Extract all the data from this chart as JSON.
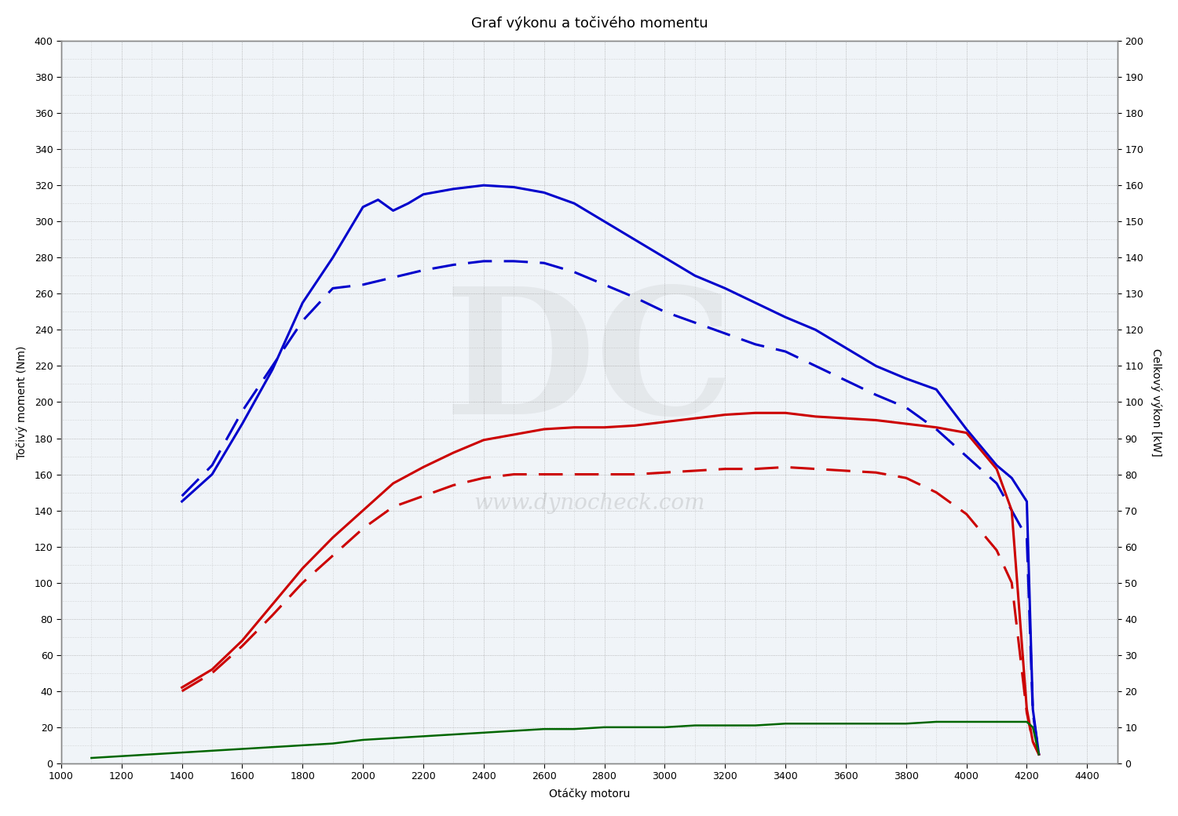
{
  "title": "Graf výkonu a točivého momentu",
  "xlabel": "Otáčky motoru",
  "ylabel_left": "Točivý moment (Nm)",
  "ylabel_right": "Celkový výkon [kW]",
  "xlim": [
    1000,
    4500
  ],
  "ylim_left": [
    0,
    400
  ],
  "ylim_right": [
    0,
    200
  ],
  "xticks": [
    1000,
    1200,
    1400,
    1600,
    1800,
    2000,
    2200,
    2400,
    2600,
    2800,
    3000,
    3200,
    3400,
    3600,
    3800,
    4000,
    4200,
    4400
  ],
  "yticks_left": [
    0,
    20,
    40,
    60,
    80,
    100,
    120,
    140,
    160,
    180,
    200,
    220,
    240,
    260,
    280,
    300,
    320,
    340,
    360,
    380,
    400
  ],
  "yticks_right": [
    0,
    10,
    20,
    30,
    40,
    50,
    60,
    70,
    80,
    90,
    100,
    110,
    120,
    130,
    140,
    150,
    160,
    170,
    180,
    190,
    200
  ],
  "background_color": "#ffffff",
  "plot_bg_color": "#f0f4f8",
  "watermark_text": "www.dynocheck.com",
  "blue_solid_rpm": [
    1400,
    1500,
    1600,
    1700,
    1800,
    1900,
    2000,
    2050,
    2100,
    2150,
    2200,
    2300,
    2400,
    2500,
    2600,
    2700,
    2800,
    2900,
    3000,
    3100,
    3200,
    3300,
    3400,
    3500,
    3600,
    3700,
    3800,
    3900,
    4000,
    4100,
    4150,
    4200,
    4220,
    4240
  ],
  "blue_solid_nm": [
    145,
    160,
    188,
    218,
    255,
    280,
    308,
    312,
    306,
    310,
    315,
    318,
    320,
    319,
    316,
    310,
    300,
    290,
    280,
    270,
    263,
    255,
    247,
    240,
    230,
    220,
    213,
    207,
    185,
    165,
    158,
    145,
    30,
    5
  ],
  "blue_dashed_rpm": [
    1400,
    1500,
    1600,
    1700,
    1800,
    1900,
    2000,
    2100,
    2200,
    2300,
    2400,
    2500,
    2600,
    2700,
    2800,
    2900,
    3000,
    3100,
    3200,
    3300,
    3400,
    3500,
    3600,
    3700,
    3800,
    3900,
    4000,
    4100,
    4150,
    4200,
    4220,
    4240
  ],
  "blue_dashed_nm": [
    148,
    165,
    195,
    220,
    245,
    263,
    265,
    269,
    273,
    276,
    278,
    278,
    277,
    272,
    265,
    258,
    250,
    244,
    238,
    232,
    228,
    220,
    212,
    204,
    197,
    185,
    170,
    155,
    140,
    125,
    28,
    5
  ],
  "red_solid_rpm": [
    1400,
    1500,
    1600,
    1700,
    1800,
    1900,
    2000,
    2100,
    2200,
    2300,
    2400,
    2500,
    2600,
    2700,
    2800,
    2900,
    3000,
    3100,
    3200,
    3300,
    3400,
    3500,
    3600,
    3700,
    3800,
    3900,
    4000,
    4100,
    4150,
    4200,
    4220,
    4240
  ],
  "red_solid_nm": [
    42,
    52,
    68,
    88,
    108,
    125,
    140,
    155,
    164,
    172,
    179,
    182,
    185,
    186,
    186,
    187,
    189,
    191,
    193,
    194,
    194,
    192,
    191,
    190,
    188,
    186,
    183,
    163,
    140,
    30,
    12,
    5
  ],
  "red_dashed_rpm": [
    1400,
    1500,
    1600,
    1700,
    1800,
    1900,
    2000,
    2100,
    2200,
    2300,
    2400,
    2500,
    2600,
    2700,
    2800,
    2900,
    3000,
    3100,
    3200,
    3300,
    3400,
    3500,
    3600,
    3700,
    3800,
    3900,
    4000,
    4100,
    4150,
    4200,
    4220,
    4240
  ],
  "red_dashed_nm": [
    40,
    50,
    65,
    82,
    100,
    115,
    130,
    142,
    148,
    154,
    158,
    160,
    160,
    160,
    160,
    160,
    161,
    162,
    163,
    163,
    164,
    163,
    162,
    161,
    158,
    150,
    138,
    118,
    100,
    28,
    12,
    5
  ],
  "green_rpm": [
    1100,
    1200,
    1300,
    1400,
    1500,
    1600,
    1700,
    1800,
    1900,
    2000,
    2100,
    2200,
    2300,
    2400,
    2500,
    2600,
    2700,
    2800,
    2900,
    3000,
    3100,
    3200,
    3300,
    3400,
    3500,
    3600,
    3700,
    3800,
    3900,
    4000,
    4100,
    4150,
    4200,
    4220,
    4240
  ],
  "green_nm": [
    3,
    4,
    5,
    6,
    7,
    8,
    9,
    10,
    11,
    13,
    14,
    15,
    16,
    17,
    18,
    19,
    19,
    20,
    20,
    20,
    21,
    21,
    21,
    22,
    22,
    22,
    22,
    22,
    23,
    23,
    23,
    23,
    23,
    20,
    5
  ],
  "blue_color": "#0000cc",
  "red_color": "#cc0000",
  "green_color": "#006600",
  "grid_color": "#aaaaaa",
  "grid_dotted_color": "#bbbbbb",
  "spine_color": "#888888",
  "title_fontsize": 13,
  "label_fontsize": 10,
  "tick_fontsize": 9
}
